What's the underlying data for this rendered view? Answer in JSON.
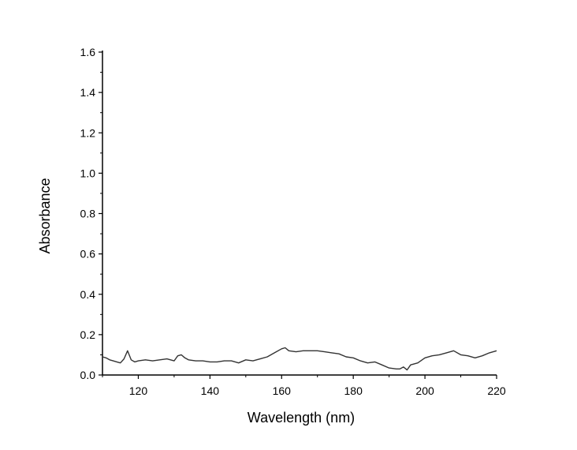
{
  "chart_data": {
    "type": "line",
    "title": "",
    "xlabel": "Wavelength (nm)",
    "ylabel": "Absorbance",
    "xlim": [
      110,
      220
    ],
    "ylim": [
      0.0,
      1.6
    ],
    "x_ticks": [
      "120",
      "140",
      "160",
      "180",
      "200",
      "220"
    ],
    "y_ticks": [
      "0.0",
      "0.2",
      "0.4",
      "0.6",
      "0.8",
      "1.0",
      "1.2",
      "1.4",
      "1.6"
    ],
    "grid": false,
    "legend": "none",
    "line_color": "#333333",
    "series": [
      {
        "x": [
          110,
          111,
          112,
          113,
          114,
          115,
          116,
          117,
          118,
          119,
          120,
          122,
          124,
          126,
          128,
          130,
          131,
          132,
          133,
          134,
          136,
          138,
          140,
          142,
          144,
          146,
          148,
          150,
          152,
          154,
          156,
          158,
          160,
          161,
          162,
          164,
          166,
          168,
          170,
          172,
          174,
          176,
          178,
          180,
          182,
          184,
          186,
          188,
          190,
          192,
          193,
          194,
          195,
          196,
          198,
          200,
          202,
          204,
          206,
          208,
          210,
          212,
          214,
          216,
          218,
          220
        ],
        "y": [
          0.09,
          0.085,
          0.075,
          0.07,
          0.065,
          0.06,
          0.08,
          0.12,
          0.075,
          0.065,
          0.07,
          0.075,
          0.07,
          0.075,
          0.08,
          0.07,
          0.095,
          0.1,
          0.085,
          0.075,
          0.07,
          0.07,
          0.065,
          0.065,
          0.07,
          0.07,
          0.06,
          0.075,
          0.07,
          0.08,
          0.09,
          0.11,
          0.13,
          0.135,
          0.12,
          0.115,
          0.12,
          0.12,
          0.12,
          0.115,
          0.11,
          0.105,
          0.09,
          0.085,
          0.07,
          0.06,
          0.065,
          0.05,
          0.035,
          0.03,
          0.03,
          0.04,
          0.025,
          0.05,
          0.06,
          0.085,
          0.095,
          0.1,
          0.11,
          0.12,
          0.1,
          0.095,
          0.085,
          0.095,
          0.11,
          0.12
        ]
      }
    ]
  }
}
